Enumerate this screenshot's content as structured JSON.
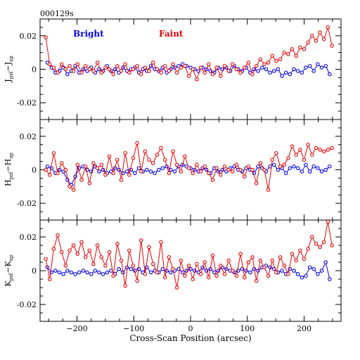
{
  "chart_data": {
    "type": "line",
    "title": "000129s",
    "xlabel": "Cross-Scan Position (arcsec)",
    "xlim": [
      -265,
      265
    ],
    "xticks": [
      -200,
      -100,
      0,
      100,
      200
    ],
    "colors": {
      "Bright": "#0000e6",
      "Faint": "#e60000"
    },
    "legend": [
      {
        "name": "Bright",
        "color": "#0000e6"
      },
      {
        "name": "Faint",
        "color": "#e60000"
      }
    ],
    "panels": [
      {
        "ylabel_main": "J",
        "ylabel_sub1": "psf",
        "ylabel_minus": "−J",
        "ylabel_sub2": "ap",
        "ylim": [
          -0.03,
          0.03
        ],
        "yticks": [
          -0.02,
          0,
          0.02
        ],
        "ytick_labels": [
          "-0.02",
          "0",
          "0.02"
        ],
        "series": [
          {
            "name": "Bright",
            "x": [
              -252,
              -245,
              -238,
              -231,
              -224,
              -217,
              -210,
              -203,
              -196,
              -189,
              -182,
              -175,
              -168,
              -161,
              -154,
              -147,
              -140,
              -133,
              -126,
              -119,
              -112,
              -105,
              -98,
              -91,
              -84,
              -77,
              -70,
              -63,
              -56,
              -49,
              -42,
              -35,
              -28,
              -21,
              -14,
              -7,
              0,
              7,
              14,
              21,
              28,
              35,
              42,
              49,
              56,
              63,
              70,
              77,
              84,
              91,
              98,
              105,
              112,
              119,
              126,
              133,
              140,
              147,
              154,
              161,
              168,
              175,
              182,
              189,
              196,
              203,
              210,
              217,
              224,
              231,
              238,
              245
            ],
            "y": [
              0.004,
              0.001,
              -0.002,
              -0.001,
              0.001,
              -0.003,
              -0.001,
              0.002,
              -0.002,
              0.0,
              -0.001,
              0.001,
              -0.002,
              0.0,
              -0.001,
              0.002,
              -0.001,
              0.0,
              -0.002,
              0.001,
              -0.001,
              0.0,
              0.001,
              -0.002,
              0.0,
              -0.001,
              0.002,
              0.0,
              -0.001,
              0.001,
              -0.002,
              0.0,
              0.001,
              0.002,
              0.003,
              0.002,
              0.001,
              0.0,
              -0.001,
              0.001,
              0.0,
              -0.001,
              -0.002,
              0.001,
              0.0,
              0.001,
              -0.001,
              0.002,
              0.0,
              -0.001,
              0.001,
              -0.002,
              0.0,
              -0.001,
              0.001,
              0.0,
              -0.002,
              -0.001,
              0.0,
              -0.004,
              -0.002,
              -0.003,
              0.0,
              -0.001,
              -0.002,
              0.001,
              0.002,
              -0.001,
              0.003,
              0.001,
              0.002,
              -0.003
            ]
          },
          {
            "name": "Faint",
            "x": [
              -255,
              -248,
              -241,
              -234,
              -227,
              -220,
              -213,
              -206,
              -199,
              -192,
              -185,
              -178,
              -171,
              -164,
              -157,
              -150,
              -143,
              -136,
              -129,
              -122,
              -115,
              -108,
              -101,
              -94,
              -87,
              -80,
              -73,
              -66,
              -59,
              -52,
              -45,
              -38,
              -31,
              -24,
              -17,
              -10,
              -3,
              4,
              11,
              18,
              25,
              32,
              39,
              46,
              53,
              60,
              67,
              74,
              81,
              88,
              95,
              102,
              109,
              116,
              123,
              130,
              137,
              144,
              151,
              158,
              165,
              172,
              179,
              186,
              193,
              200,
              207,
              214,
              221,
              228,
              235,
              242,
              249
            ],
            "y": [
              0.019,
              0.003,
              0.001,
              -0.002,
              0.003,
              0.0,
              0.002,
              -0.001,
              0.003,
              -0.002,
              0.002,
              0.0,
              -0.001,
              0.004,
              -0.002,
              0.001,
              0.0,
              -0.003,
              0.002,
              -0.001,
              0.003,
              -0.002,
              0.0,
              0.002,
              -0.003,
              0.001,
              -0.001,
              0.004,
              0.0,
              -0.002,
              0.002,
              -0.001,
              0.003,
              -0.002,
              0.001,
              0.002,
              -0.004,
              0.0,
              -0.006,
              0.001,
              -0.002,
              0.003,
              -0.003,
              0.001,
              -0.004,
              0.002,
              -0.001,
              0.003,
              0.0,
              -0.002,
              0.001,
              0.004,
              -0.003,
              0.002,
              0.006,
              0.003,
              0.004,
              0.008,
              0.005,
              0.006,
              0.01,
              0.009,
              0.012,
              0.008,
              0.013,
              0.012,
              0.016,
              0.02,
              0.017,
              0.022,
              0.018,
              0.025,
              0.014
            ]
          }
        ]
      },
      {
        "ylabel_main": "H",
        "ylabel_sub1": "psf",
        "ylabel_minus": "−H",
        "ylabel_sub2": "ap",
        "ylim": [
          -0.03,
          0.03
        ],
        "yticks": [
          -0.02,
          0,
          0.02
        ],
        "ytick_labels": [
          "-0.02",
          "0",
          "0.02"
        ],
        "series": [
          {
            "name": "Bright",
            "x": [
              -252,
              -245,
              -238,
              -231,
              -224,
              -217,
              -210,
              -203,
              -196,
              -189,
              -182,
              -175,
              -168,
              -161,
              -154,
              -147,
              -140,
              -133,
              -126,
              -119,
              -112,
              -105,
              -98,
              -91,
              -84,
              -77,
              -70,
              -63,
              -56,
              -49,
              -42,
              -35,
              -28,
              -21,
              -14,
              -7,
              0,
              7,
              14,
              21,
              28,
              35,
              42,
              49,
              56,
              63,
              70,
              77,
              84,
              91,
              98,
              105,
              112,
              119,
              126,
              133,
              140,
              147,
              154,
              161,
              168,
              175,
              182,
              189,
              196,
              203,
              210,
              217,
              224,
              231,
              238,
              245
            ],
            "y": [
              0.002,
              0.001,
              -0.002,
              0.0,
              -0.001,
              -0.006,
              -0.009,
              -0.004,
              0.001,
              0.002,
              0.0,
              -0.001,
              0.002,
              -0.001,
              0.0,
              -0.002,
              -0.001,
              0.001,
              0.0,
              -0.002,
              -0.001,
              0.0,
              -0.002,
              0.001,
              -0.001,
              0.0,
              -0.001,
              -0.002,
              0.0,
              0.001,
              0.002,
              0.0,
              -0.001,
              0.002,
              0.003,
              0.002,
              0.001,
              0.0,
              -0.001,
              0.001,
              0.0,
              -0.002,
              0.001,
              -0.001,
              0.0,
              -0.001,
              0.001,
              0.002,
              0.0,
              -0.001,
              0.001,
              0.0,
              -0.002,
              0.002,
              0.001,
              -0.001,
              0.002,
              0.003,
              0.0,
              0.001,
              -0.002,
              0.001,
              0.002,
              0.001,
              -0.001,
              0.003,
              -0.001,
              0.002,
              0.001,
              -0.001,
              0.0,
              0.002
            ]
          },
          {
            "name": "Faint",
            "x": [
              -255,
              -248,
              -241,
              -234,
              -227,
              -220,
              -213,
              -206,
              -199,
              -192,
              -185,
              -178,
              -171,
              -164,
              -157,
              -150,
              -143,
              -136,
              -129,
              -122,
              -115,
              -108,
              -101,
              -94,
              -87,
              -80,
              -73,
              -66,
              -59,
              -52,
              -45,
              -38,
              -31,
              -24,
              -17,
              -10,
              -3,
              4,
              11,
              18,
              25,
              32,
              39,
              46,
              53,
              60,
              67,
              74,
              81,
              88,
              95,
              102,
              109,
              116,
              123,
              130,
              137,
              144,
              151,
              158,
              165,
              172,
              179,
              186,
              193,
              200,
              207,
              214,
              221,
              228,
              235,
              242,
              249
            ],
            "y": [
              0.0,
              -0.003,
              0.01,
              -0.002,
              0.004,
              0.0,
              -0.01,
              -0.012,
              0.003,
              -0.006,
              0.002,
              -0.008,
              0.004,
              0.001,
              0.003,
              -0.003,
              0.008,
              -0.002,
              0.006,
              -0.006,
              0.01,
              -0.003,
              0.007,
              0.016,
              -0.001,
              0.011,
              0.006,
              0.004,
              0.009,
              0.013,
              0.006,
              -0.002,
              0.011,
              0.003,
              -0.001,
              0.008,
              0.001,
              -0.002,
              0.003,
              -0.001,
              0.002,
              -0.002,
              -0.006,
              0.001,
              -0.003,
              0.002,
              0.0,
              -0.001,
              0.003,
              0.0,
              -0.004,
              0.002,
              0.0,
              -0.008,
              0.004,
              0.0,
              -0.012,
              0.006,
              0.01,
              0.002,
              0.003,
              0.007,
              0.014,
              0.009,
              0.012,
              0.006,
              0.015,
              0.009,
              0.013,
              0.012,
              0.011,
              0.012,
              0.013
            ]
          }
        ]
      },
      {
        "ylabel_main": "K",
        "ylabel_sub1": "psf",
        "ylabel_minus": "−K",
        "ylabel_sub2": "ap",
        "ylim": [
          -0.03,
          0.03
        ],
        "yticks": [
          -0.02,
          0,
          0.02
        ],
        "ytick_labels": [
          "-0.02",
          "0",
          "0.02"
        ],
        "series": [
          {
            "name": "Bright",
            "x": [
              -252,
              -245,
              -238,
              -231,
              -224,
              -217,
              -210,
              -203,
              -196,
              -189,
              -182,
              -175,
              -168,
              -161,
              -154,
              -147,
              -140,
              -133,
              -126,
              -119,
              -112,
              -105,
              -98,
              -91,
              -84,
              -77,
              -70,
              -63,
              -56,
              -49,
              -42,
              -35,
              -28,
              -21,
              -14,
              -7,
              0,
              7,
              14,
              21,
              28,
              35,
              42,
              49,
              56,
              63,
              70,
              77,
              84,
              91,
              98,
              105,
              112,
              119,
              126,
              133,
              140,
              147,
              154,
              161,
              168,
              175,
              182,
              189,
              196,
              203,
              210,
              217,
              224,
              231,
              238,
              245
            ],
            "y": [
              0.002,
              -0.001,
              0.0,
              -0.001,
              -0.002,
              0.0,
              -0.001,
              -0.002,
              -0.001,
              0.0,
              -0.001,
              -0.002,
              0.0,
              -0.001,
              -0.002,
              -0.001,
              0.0,
              -0.002,
              0.001,
              -0.001,
              0.002,
              0.001,
              0.0,
              0.001,
              -0.001,
              0.002,
              -0.001,
              0.0,
              -0.001,
              0.001,
              0.0,
              -0.001,
              0.0,
              0.001,
              -0.001,
              0.0,
              0.001,
              0.0,
              -0.001,
              0.002,
              0.0,
              0.001,
              -0.001,
              0.0,
              0.002,
              0.001,
              0.0,
              -0.001,
              0.0,
              0.001,
              0.0,
              -0.001,
              0.001,
              0.0,
              0.002,
              0.003,
              0.002,
              0.001,
              -0.001,
              0.0,
              -0.002,
              0.001,
              0.0,
              -0.002,
              -0.004,
              -0.003,
              0.002,
              0.001,
              -0.002,
              0.0,
              0.005,
              -0.005
            ]
          },
          {
            "name": "Faint",
            "x": [
              -255,
              -248,
              -241,
              -234,
              -227,
              -220,
              -213,
              -206,
              -199,
              -192,
              -185,
              -178,
              -171,
              -164,
              -157,
              -150,
              -143,
              -136,
              -129,
              -122,
              -115,
              -108,
              -101,
              -94,
              -87,
              -80,
              -73,
              -66,
              -59,
              -52,
              -45,
              -38,
              -31,
              -24,
              -17,
              -10,
              -3,
              4,
              11,
              18,
              25,
              32,
              39,
              46,
              53,
              60,
              67,
              74,
              81,
              88,
              95,
              102,
              109,
              116,
              123,
              130,
              137,
              144,
              151,
              158,
              165,
              172,
              179,
              186,
              193,
              200,
              207,
              214,
              221,
              228,
              235,
              242,
              249
            ],
            "y": [
              0.007,
              -0.005,
              0.013,
              0.021,
              0.011,
              0.003,
              0.012,
              0.015,
              0.01,
              0.017,
              0.008,
              0.012,
              0.004,
              0.015,
              0.008,
              0.003,
              0.011,
              -0.003,
              0.016,
              0.006,
              -0.009,
              0.012,
              0.003,
              -0.006,
              0.018,
              -0.002,
              0.014,
              0.004,
              -0.001,
              0.017,
              -0.004,
              0.008,
              0.001,
              -0.01,
              0.006,
              -0.003,
              0.003,
              -0.005,
              0.004,
              -0.002,
              0.005,
              -0.004,
              0.009,
              -0.003,
              0.003,
              -0.002,
              0.006,
              0.0,
              -0.003,
              0.01,
              -0.004,
              0.005,
              0.008,
              -0.006,
              0.006,
              0.002,
              -0.003,
              0.006,
              -0.001,
              0.008,
              0.003,
              -0.002,
              0.01,
              0.006,
              0.012,
              0.007,
              0.013,
              0.02,
              0.016,
              0.014,
              0.017,
              0.029,
              0.015
            ]
          }
        ]
      }
    ]
  }
}
